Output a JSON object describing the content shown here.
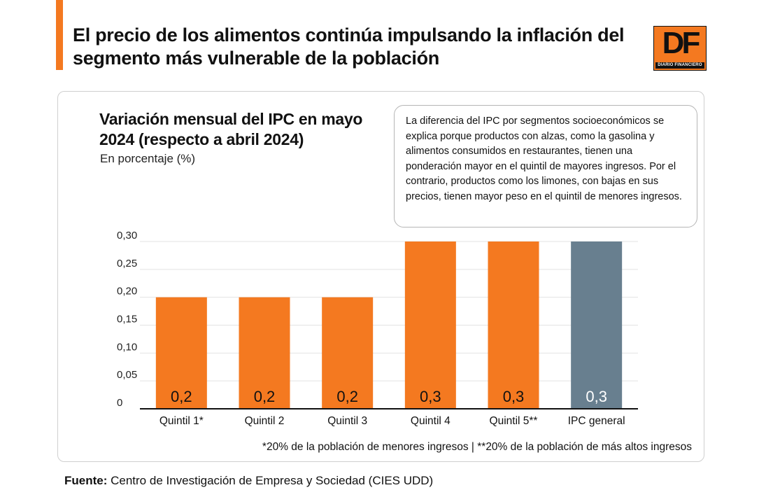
{
  "headline": "El precio de los alimentos continúa impulsando la inflación del segmento más vulnerable de la población",
  "logo": {
    "mark": "DF",
    "subtext": "DIARIO FINANCIERO"
  },
  "colors": {
    "accent": "#f47920",
    "bar": "#f47920",
    "bar_general": "#687f8f",
    "label_general": "#ffffff",
    "label": "#111111"
  },
  "note": "La diferencia del IPC por segmentos socioeconómicos se explica porque productos con alzas, como la gasolina y alimentos consumidos en restaurantes, tienen una ponderación mayor en el quintil de mayores ingresos. Por el contrario, productos como los limones, con bajas en sus precios, tienen mayor peso en el quintil de menores ingresos.",
  "chart_data": {
    "type": "bar",
    "title": "Variación mensual del IPC en mayo 2024 (respecto a abril 2024)",
    "subtitle": "En porcentaje (%)",
    "categories": [
      "Quintil 1*",
      "Quintil 2",
      "Quintil 3",
      "Quintil 4",
      "Quintil 5**",
      "IPC general"
    ],
    "values": [
      0.2,
      0.2,
      0.2,
      0.3,
      0.3,
      0.3
    ],
    "value_labels": [
      "0,2",
      "0,2",
      "0,2",
      "0,3",
      "0,3",
      "0,3"
    ],
    "ylim": [
      0,
      0.3
    ],
    "yticks": [
      0,
      0.05,
      0.1,
      0.15,
      0.2,
      0.25,
      0.3
    ],
    "ytick_labels": [
      "0",
      "0,05",
      "0,10",
      "0,15",
      "0,20",
      "0,25",
      "0,30"
    ],
    "xlabel": "",
    "ylabel": "",
    "grid": true
  },
  "footnote": "*20% de la población de menores ingresos | **20% de la población de más altos ingresos",
  "source": {
    "label": "Fuente:",
    "text": " Centro de Investigación de Empresa y Sociedad (CIES UDD)"
  }
}
